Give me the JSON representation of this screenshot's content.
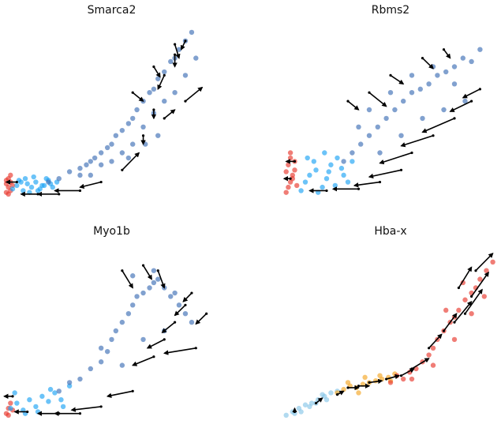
{
  "chart_data": [
    {
      "type": "scatter",
      "title": "Smarca2",
      "xlim": [
        0,
        100
      ],
      "ylim": [
        0,
        100
      ],
      "series": [
        {
          "color": "#e8372c",
          "x": [
            0,
            1,
            2,
            1,
            2,
            0,
            1,
            3,
            2,
            0
          ],
          "y": [
            2,
            5,
            8,
            10,
            3,
            7,
            1,
            6,
            12,
            9
          ]
        },
        {
          "color": "#1ba3f5",
          "x": [
            3,
            5,
            8,
            10,
            12,
            14,
            16,
            18,
            20,
            22,
            24,
            6,
            9,
            13,
            17,
            21,
            11,
            15,
            7,
            19
          ],
          "y": [
            4,
            6,
            3,
            7,
            5,
            8,
            4,
            6,
            9,
            5,
            8,
            9,
            10,
            11,
            6,
            7,
            2,
            3,
            8,
            10
          ]
        },
        {
          "color": "#3d6fb5",
          "x": [
            20,
            25,
            30,
            35,
            38,
            40,
            42,
            45,
            48,
            50,
            52,
            55,
            58,
            60,
            62,
            65,
            68,
            70,
            72,
            75,
            78,
            80,
            82,
            85,
            88,
            60,
            65,
            70,
            55,
            50,
            45,
            40,
            35,
            75,
            80,
            85,
            90,
            72,
            66,
            58
          ],
          "y": [
            8,
            10,
            14,
            16,
            18,
            20,
            22,
            25,
            28,
            30,
            35,
            38,
            42,
            45,
            50,
            55,
            60,
            62,
            68,
            72,
            78,
            80,
            85,
            90,
            95,
            30,
            40,
            48,
            25,
            20,
            18,
            12,
            12,
            55,
            60,
            70,
            80,
            35,
            30,
            22
          ]
        }
      ],
      "arrows": {
        "x": [
          5,
          15,
          25,
          35,
          45,
          55,
          65,
          70,
          75,
          80,
          85,
          60,
          70,
          80,
          75,
          85
        ],
        "y": [
          8,
          1,
          1,
          3,
          8,
          15,
          35,
          50,
          70,
          82,
          90,
          60,
          75,
          88,
          45,
          55
        ],
        "dx": [
          -5,
          -8,
          -10,
          -12,
          -10,
          8,
          0,
          0,
          -3,
          0,
          -2,
          5,
          3,
          2,
          5,
          8
        ],
        "dy": [
          0,
          0,
          0,
          0,
          -3,
          10,
          -5,
          -5,
          -8,
          -7,
          -5,
          -5,
          -6,
          -8,
          5,
          8
        ]
      }
    },
    {
      "type": "scatter",
      "title": "Rbms2",
      "xlim": [
        0,
        100
      ],
      "ylim": [
        0,
        100
      ],
      "series": [
        {
          "color": "#e8372c",
          "x": [
            1,
            2,
            3,
            4,
            5,
            2,
            3,
            4,
            6,
            1,
            5,
            3
          ],
          "y": [
            2,
            5,
            8,
            12,
            15,
            18,
            22,
            10,
            6,
            14,
            20,
            25
          ]
        },
        {
          "color": "#1ba3f5",
          "x": [
            8,
            10,
            12,
            15,
            18,
            20,
            22,
            25,
            28,
            30,
            32,
            14,
            19,
            24,
            27,
            11,
            16,
            21
          ],
          "y": [
            3,
            8,
            12,
            15,
            5,
            10,
            18,
            22,
            12,
            8,
            20,
            20,
            25,
            6,
            16,
            22,
            2,
            14
          ]
        },
        {
          "color": "#3d6fb5",
          "x": [
            28,
            32,
            36,
            40,
            44,
            48,
            52,
            56,
            60,
            64,
            68,
            72,
            76,
            80,
            84,
            88,
            92,
            45,
            55,
            65,
            75,
            85,
            50,
            60,
            70,
            40,
            35,
            80
          ],
          "y": [
            20,
            25,
            30,
            35,
            40,
            45,
            50,
            55,
            60,
            62,
            65,
            70,
            72,
            75,
            80,
            78,
            85,
            25,
            35,
            45,
            50,
            55,
            60,
            70,
            75,
            50,
            40,
            65
          ]
        }
      ],
      "arrows": {
        "x": [
          3,
          5,
          20,
          35,
          45,
          55,
          60,
          70,
          80,
          88,
          92,
          40,
          65,
          75,
          30,
          50
        ],
        "y": [
          10,
          20,
          3,
          4,
          8,
          15,
          25,
          35,
          45,
          55,
          62,
          60,
          80,
          85,
          55,
          70
        ],
        "dx": [
          -3,
          -4,
          -8,
          -12,
          -12,
          -15,
          -15,
          -15,
          -15,
          -10,
          -8,
          8,
          5,
          3,
          5,
          6
        ],
        "dy": [
          0,
          0,
          0,
          0,
          -2,
          -4,
          -6,
          -6,
          -8,
          -6,
          -5,
          -8,
          -6,
          -5,
          -5,
          -5
        ]
      }
    },
    {
      "type": "scatter",
      "title": "Myo1b",
      "xlim": [
        0,
        100
      ],
      "ylim": [
        0,
        100
      ],
      "series": [
        {
          "color": "#e8372c",
          "x": [
            0,
            1,
            2,
            1,
            3
          ],
          "y": [
            2,
            5,
            8,
            1,
            4
          ]
        },
        {
          "color": "#1ba3f5",
          "x": [
            2,
            5,
            8,
            11,
            14,
            17,
            20,
            23,
            26,
            4,
            9,
            15,
            21,
            27,
            30
          ],
          "y": [
            5,
            8,
            4,
            10,
            6,
            12,
            9,
            14,
            10,
            14,
            2,
            3,
            16,
            6,
            18
          ]
        },
        {
          "color": "#3d6fb5",
          "x": [
            25,
            30,
            35,
            40,
            45,
            48,
            50,
            52,
            55,
            58,
            60,
            62,
            65,
            68,
            70,
            72,
            75,
            78,
            80,
            82,
            85,
            88,
            55,
            65,
            75,
            45,
            60,
            70
          ],
          "y": [
            15,
            20,
            22,
            28,
            32,
            38,
            45,
            50,
            55,
            60,
            65,
            70,
            72,
            75,
            78,
            80,
            75,
            70,
            72,
            65,
            60,
            55,
            30,
            45,
            50,
            40,
            82,
            85
          ]
        }
      ],
      "arrows": {
        "x": [
          3,
          10,
          25,
          35,
          45,
          60,
          70,
          75,
          80,
          85,
          88,
          55,
          65,
          72,
          90,
          95
        ],
        "y": [
          12,
          3,
          2,
          2,
          6,
          15,
          35,
          45,
          55,
          65,
          72,
          85,
          88,
          85,
          40,
          60
        ],
        "dx": [
          -4,
          -6,
          -10,
          -12,
          -14,
          -12,
          -10,
          -8,
          -6,
          -5,
          -4,
          5,
          4,
          3,
          -15,
          -5
        ],
        "dy": [
          0,
          0,
          0,
          0,
          -2,
          -3,
          -5,
          -5,
          -6,
          -6,
          -5,
          -10,
          -8,
          -10,
          -3,
          -6
        ]
      }
    },
    {
      "type": "scatter",
      "title": "Hba-x",
      "xlim": [
        0,
        100
      ],
      "ylim": [
        0,
        100
      ],
      "series": [
        {
          "color": "#87c6e8",
          "x": [
            1,
            4,
            7,
            10,
            13,
            16,
            19,
            22,
            25,
            8,
            15,
            20,
            5,
            12,
            18
          ],
          "y": [
            1,
            3,
            5,
            7,
            8,
            10,
            12,
            14,
            15,
            3,
            8,
            10,
            2,
            6,
            13
          ]
        },
        {
          "color": "#f5a623",
          "x": [
            25,
            28,
            31,
            34,
            37,
            40,
            43,
            46,
            49,
            52,
            30,
            38,
            45,
            50,
            35
          ],
          "y": [
            14,
            16,
            18,
            17,
            19,
            20,
            21,
            22,
            23,
            25,
            20,
            23,
            24,
            21,
            14
          ]
        },
        {
          "color": "#e8372c",
          "x": [
            50,
            53,
            56,
            59,
            62,
            65,
            68,
            70,
            72,
            75,
            78,
            80,
            82,
            85,
            88,
            90,
            92,
            95,
            98,
            70,
            80,
            88,
            60,
            76,
            84,
            94
          ],
          "y": [
            20,
            24,
            22,
            26,
            28,
            32,
            36,
            40,
            45,
            50,
            55,
            58,
            62,
            68,
            72,
            75,
            80,
            85,
            90,
            30,
            45,
            60,
            22,
            62,
            78,
            70
          ]
        }
      ],
      "arrows": {
        "x": [
          5,
          15,
          25,
          30,
          35,
          40,
          48,
          55,
          60,
          68,
          75,
          80,
          85,
          88,
          82,
          90
        ],
        "y": [
          3,
          8,
          13,
          17,
          18,
          20,
          22,
          24,
          28,
          40,
          50,
          55,
          60,
          70,
          75,
          85
        ],
        "dx": [
          0,
          3,
          3,
          5,
          5,
          6,
          6,
          6,
          8,
          6,
          6,
          8,
          8,
          8,
          6,
          8
        ],
        "dy": [
          2,
          3,
          2,
          0,
          0,
          1,
          2,
          4,
          6,
          8,
          10,
          12,
          14,
          14,
          12,
          10
        ]
      }
    }
  ]
}
